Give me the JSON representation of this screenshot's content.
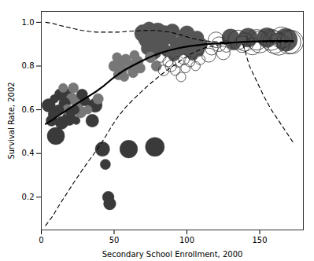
{
  "chart_data": {
    "type": "scatter",
    "xlabel": "Secondary School Enrollment, 2000",
    "ylabel": "Survival Rate, 2002",
    "xlim": [
      0,
      180
    ],
    "ylim": [
      0.05,
      1.05
    ],
    "xticks": [
      0,
      50,
      100,
      150
    ],
    "yticks": [
      0.2,
      0.4,
      0.6,
      0.8,
      {
        "value": 1.0,
        "label": "1.0"
      }
    ],
    "series": [
      {
        "type": "scatter",
        "marker": "circle",
        "x": [
          5,
          7,
          8,
          9,
          10,
          12,
          13,
          14,
          15,
          16,
          17,
          18,
          19,
          20,
          21,
          22,
          23,
          24,
          25,
          27,
          28,
          30,
          32,
          35,
          37,
          39,
          42,
          44,
          46,
          47,
          60,
          78,
          50,
          52,
          53,
          55,
          56,
          57,
          58,
          62,
          63,
          64,
          66,
          68,
          70,
          72,
          73,
          74,
          75,
          76,
          77,
          78,
          79,
          80,
          81,
          83,
          85,
          86,
          88,
          90,
          91,
          93,
          95,
          97,
          100,
          101,
          103,
          104,
          105,
          107,
          108,
          110,
          130,
          132,
          142,
          155,
          168
        ],
        "values": [
          0.62,
          0.55,
          0.58,
          0.65,
          0.48,
          0.6,
          0.67,
          0.54,
          0.7,
          0.63,
          0.67,
          0.6,
          0.56,
          0.59,
          0.65,
          0.7,
          0.6,
          0.55,
          0.63,
          0.59,
          0.67,
          0.64,
          0.6,
          0.55,
          0.62,
          0.65,
          0.42,
          0.35,
          0.2,
          0.17,
          0.42,
          0.43,
          0.8,
          0.84,
          0.76,
          0.78,
          0.82,
          0.75,
          0.83,
          0.8,
          0.77,
          0.85,
          0.82,
          0.79,
          0.95,
          0.92,
          0.88,
          0.97,
          0.84,
          0.9,
          0.93,
          0.86,
          0.8,
          0.96,
          0.88,
          0.91,
          0.95,
          0.87,
          0.93,
          0.96,
          0.85,
          0.9,
          0.88,
          0.92,
          0.95,
          0.87,
          0.91,
          0.85,
          0.89,
          0.93,
          0.87,
          0.9,
          0.93,
          0.91,
          0.93,
          0.93,
          0.92
        ],
        "sizes": [
          120,
          80,
          60,
          50,
          200,
          70,
          90,
          110,
          55,
          85,
          100,
          75,
          130,
          60,
          90,
          70,
          55,
          40,
          85,
          95,
          80,
          65,
          50,
          110,
          130,
          75,
          140,
          70,
          90,
          100,
          210,
          240,
          80,
          60,
          70,
          90,
          65,
          55,
          75,
          85,
          70,
          60,
          90,
          65,
          200,
          150,
          110,
          130,
          80,
          95,
          140,
          100,
          70,
          180,
          85,
          120,
          160,
          90,
          110,
          140,
          95,
          120,
          130,
          100,
          150,
          90,
          110,
          80,
          65,
          120,
          90,
          100,
          200,
          170,
          240,
          260,
          350
        ],
        "colors": [
          "#3a3a3a",
          "#3a3a3a",
          "#3a3a3a",
          "#3a3a3a",
          "#3a3a3a",
          "#3a3a3a",
          "#3a3a3a",
          "#3a3a3a",
          "#777777",
          "#3a3a3a",
          "#3a3a3a",
          "#777777",
          "#3a3a3a",
          "#3a3a3a",
          "#777777",
          "#777777",
          "#3a3a3a",
          "#3a3a3a",
          "#777777",
          "#777777",
          "#3a3a3a",
          "#3a3a3a",
          "#777777",
          "#3a3a3a",
          "#3a3a3a",
          "#777777",
          "#3a3a3a",
          "#3a3a3a",
          "#3a3a3a",
          "#3a3a3a",
          "#3a3a3a",
          "#3a3a3a",
          "#777777",
          "#777777",
          "#777777",
          "#777777",
          "#777777",
          "#777777",
          "#777777",
          "#777777",
          "#777777",
          "#777777",
          "#777777",
          "#777777",
          "#555555",
          "#555555",
          "#555555",
          "#555555",
          "#777777",
          "#555555",
          "#555555",
          "#555555",
          "#777777",
          "#555555",
          "#555555",
          "#555555",
          "#555555",
          "#555555",
          "#555555",
          "#555555",
          "#555555",
          "#555555",
          "#555555",
          "#555555",
          "#555555",
          "#555555",
          "#555555",
          "#555555",
          "#555555",
          "#555555",
          "#555555",
          "#555555",
          "#555555",
          "#555555",
          "#555555",
          "#555555",
          "#555555"
        ]
      },
      {
        "type": "scatter",
        "marker": "open circle",
        "color": "#333333",
        "x": [
          82,
          84,
          87,
          89,
          92,
          94,
          96,
          98,
          99,
          102,
          106,
          109,
          115,
          117,
          120,
          122,
          125,
          127,
          135,
          138,
          140,
          145,
          148,
          150,
          158,
          160,
          163,
          165,
          170,
          172
        ],
        "values": [
          0.84,
          0.78,
          0.82,
          0.8,
          0.78,
          0.82,
          0.75,
          0.83,
          0.79,
          0.82,
          0.8,
          0.83,
          0.85,
          0.88,
          0.92,
          0.9,
          0.86,
          0.89,
          0.92,
          0.9,
          0.91,
          0.89,
          0.92,
          0.91,
          0.92,
          0.91,
          0.9,
          0.93,
          0.91,
          0.91
        ],
        "sizes": [
          65,
          75,
          70,
          85,
          65,
          80,
          60,
          75,
          55,
          70,
          55,
          70,
          130,
          110,
          160,
          140,
          120,
          90,
          250,
          180,
          220,
          190,
          280,
          310,
          290,
          340,
          320,
          300,
          380,
          360
        ]
      },
      {
        "type": "line",
        "color": "#000000",
        "line_style": "solid",
        "x": [
          3,
          8,
          13,
          18,
          23,
          28,
          33,
          38,
          43,
          48,
          53,
          58,
          63,
          68,
          73,
          78,
          83,
          88,
          93,
          98,
          103,
          108,
          113,
          118,
          123,
          128,
          133,
          138,
          143,
          148,
          153,
          158,
          163,
          168,
          173
        ],
        "values": [
          0.535,
          0.555,
          0.578,
          0.6,
          0.622,
          0.643,
          0.664,
          0.685,
          0.71,
          0.738,
          0.763,
          0.785,
          0.803,
          0.82,
          0.836,
          0.85,
          0.862,
          0.872,
          0.88,
          0.887,
          0.892,
          0.896,
          0.9,
          0.902,
          0.904,
          0.906,
          0.908,
          0.91,
          0.912,
          0.913,
          0.914,
          0.915,
          0.915,
          0.915,
          0.915
        ]
      },
      {
        "type": "line",
        "color": "#000000",
        "line_style": "dashed",
        "x": [
          3,
          8,
          13,
          18,
          23,
          28,
          33,
          38,
          43,
          48,
          53,
          58,
          63,
          68,
          73,
          78,
          83,
          88,
          93,
          98,
          103,
          108,
          113,
          118,
          123,
          128,
          133,
          138,
          143,
          148,
          153,
          158,
          163,
          168,
          173
        ],
        "values": [
          1.0,
          0.995,
          0.985,
          0.978,
          0.97,
          0.963,
          0.958,
          0.955,
          0.955,
          0.955,
          0.955,
          0.958,
          0.96,
          0.962,
          0.963,
          0.963,
          0.96,
          0.955,
          0.948,
          0.938,
          0.928,
          0.92,
          0.915,
          0.912,
          0.91,
          0.909,
          0.909,
          0.91,
          0.91,
          0.91,
          0.91,
          0.91,
          0.91,
          0.91,
          0.91
        ]
      },
      {
        "type": "line",
        "color": "#000000",
        "line_style": "dashed",
        "x": [
          3,
          8,
          13,
          18,
          23,
          28,
          33,
          38,
          43,
          48,
          53,
          58,
          63,
          68,
          73,
          78,
          83,
          88,
          93,
          98,
          103,
          108,
          113,
          118,
          123,
          128,
          133,
          138,
          143,
          148,
          153,
          158,
          163,
          168,
          173
        ],
        "values": [
          0.07,
          0.115,
          0.171,
          0.222,
          0.274,
          0.323,
          0.37,
          0.415,
          0.465,
          0.521,
          0.571,
          0.612,
          0.646,
          0.678,
          0.709,
          0.737,
          0.764,
          0.789,
          0.812,
          0.836,
          0.856,
          0.872,
          0.885,
          0.892,
          0.898,
          0.903,
          0.907,
          0.91,
          0.8,
          0.73,
          0.66,
          0.6,
          0.55,
          0.5,
          0.45
        ]
      }
    ]
  }
}
